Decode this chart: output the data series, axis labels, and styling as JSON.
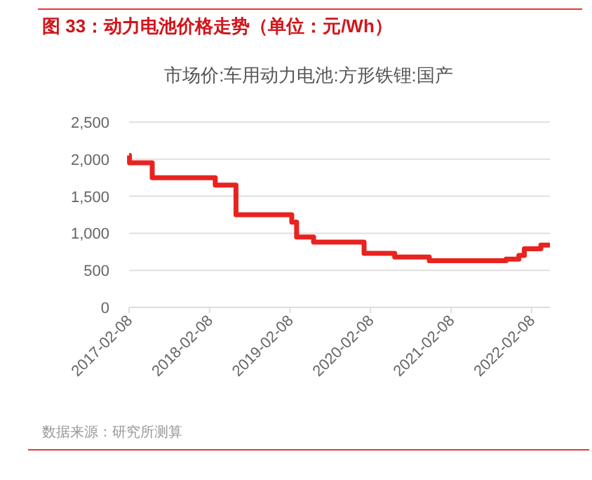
{
  "chart_data": {
    "type": "step",
    "title": "图 33：动力电池价格走势（单位：元/Wh）",
    "subtitle": "市场价:车用动力电池:方形铁锂:国产",
    "annotations": [
      "数据来源：研究所测算"
    ],
    "x": [
      "2017-02-08",
      "2017-02-10",
      "2017-05-24",
      "2018-03-06",
      "2018-06-08",
      "2019-02-16",
      "2019-03-10",
      "2019-05-26",
      "2020-01-10",
      "2020-05-28",
      "2020-11-01",
      "2021-10-15",
      "2021-12-12",
      "2022-01-06",
      "2022-03-22",
      "2022-05-02"
    ],
    "series": [
      {
        "color": "#e8231f",
        "values": [
          2050,
          1950,
          1750,
          1650,
          1250,
          1150,
          950,
          880,
          730,
          680,
          630,
          650,
          700,
          790,
          840,
          840
        ]
      }
    ],
    "xlim": [
      "2017-02-08",
      "2022-05-02"
    ],
    "xticks": [
      "2017-02-08",
      "2018-02-08",
      "2019-02-08",
      "2020-02-08",
      "2021-02-08",
      "2022-02-08"
    ],
    "ylim": [
      0,
      2500
    ],
    "yticks": [
      {
        "value": 0,
        "label": "0"
      },
      {
        "value": 500,
        "label": "500"
      },
      {
        "value": 1000,
        "label": "1,000"
      },
      {
        "value": 1500,
        "label": "1,500"
      },
      {
        "value": 2000,
        "label": "2,000"
      },
      {
        "value": 2500,
        "label": "2,500"
      }
    ],
    "grid": "y"
  }
}
